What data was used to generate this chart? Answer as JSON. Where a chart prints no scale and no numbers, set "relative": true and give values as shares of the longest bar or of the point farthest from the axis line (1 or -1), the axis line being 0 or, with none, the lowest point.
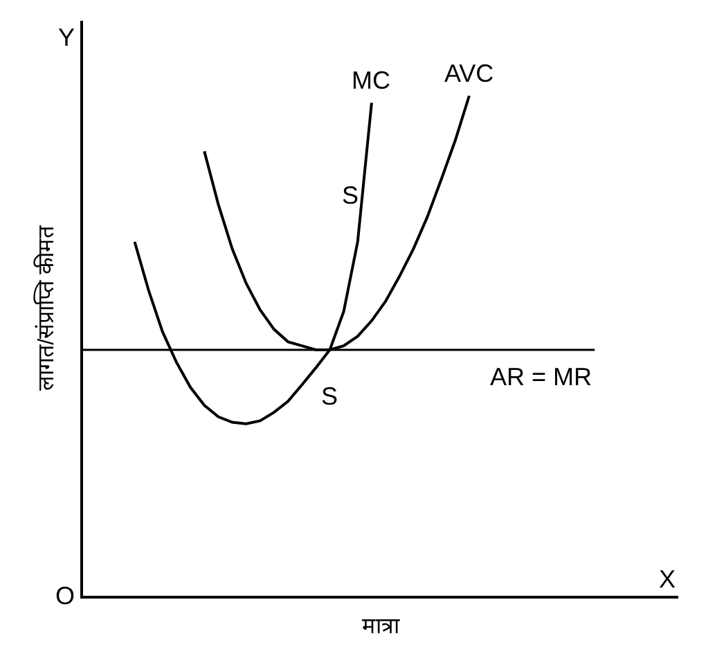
{
  "chart_data": {
    "type": "line",
    "relative": true,
    "xlabel": "मात्रा",
    "ylabel": "लागत/संप्राप्ति कीमत",
    "tick_labels": false,
    "legend": false,
    "marker": "none",
    "line_style": "solid",
    "categories": [
      null,
      null,
      null,
      null,
      null,
      null,
      null,
      null,
      null,
      null,
      null,
      null,
      null,
      null,
      null,
      null,
      null,
      null,
      null,
      null,
      null,
      null,
      null,
      null,
      null
    ],
    "series": [
      {
        "name": "MC",
        "color": "#000000",
        "values": [
          0.708,
          0.611,
          0.528,
          0.467,
          0.417,
          0.381,
          0.358,
          0.347,
          0.344,
          0.35,
          0.367,
          0.389,
          0.422,
          0.456,
          0.492,
          0.569,
          0.708,
          0.986,
          null,
          null,
          null,
          null,
          null,
          null,
          null
        ]
      },
      {
        "name": "AVC",
        "color": "#000000",
        "values": [
          null,
          null,
          null,
          null,
          null,
          0.889,
          0.783,
          0.694,
          0.625,
          0.572,
          0.533,
          0.508,
          0.5,
          0.492,
          0.492,
          0.5,
          0.519,
          0.55,
          0.589,
          0.639,
          0.694,
          0.758,
          0.833,
          0.911,
          1
        ]
      }
    ],
    "ref_lines": [
      {
        "axis": "y",
        "value": 0.492,
        "label": "AR = MR",
        "color": "#000000"
      }
    ],
    "annotations": [
      "S",
      "S",
      "O",
      "Y",
      "X"
    ]
  }
}
